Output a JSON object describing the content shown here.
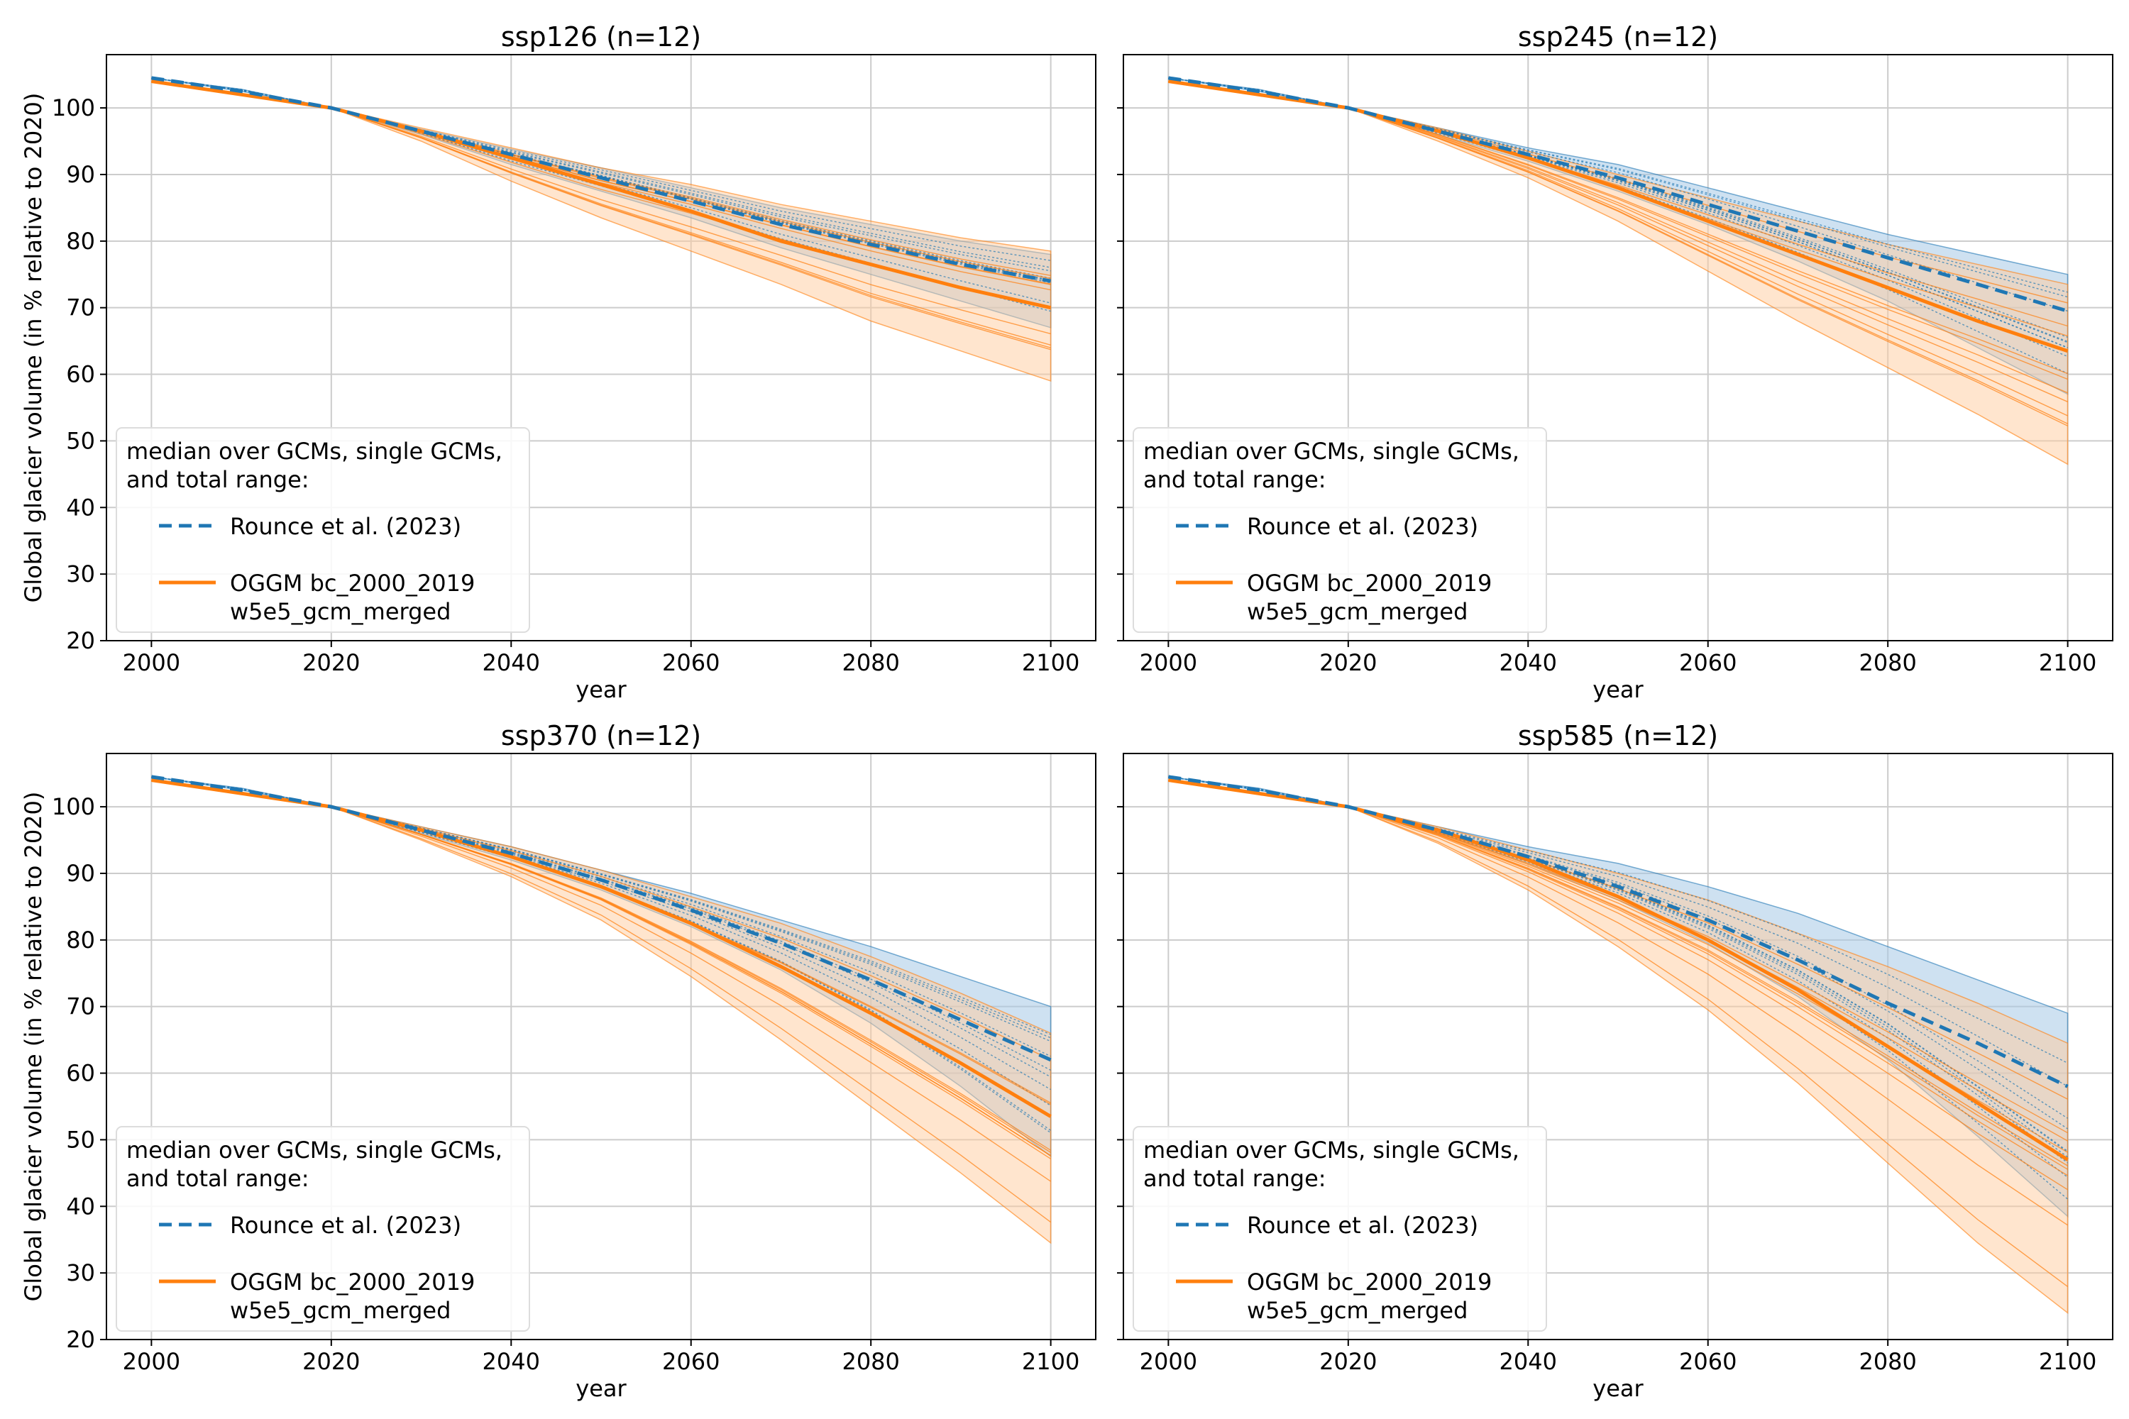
{
  "colors": {
    "rounce": "#1f77b4",
    "oggm": "#ff7f0e",
    "rounce_fill": "#a6c8e6",
    "oggm_fill": "#ffcb9e",
    "grid": "#cccccc",
    "text": "#000000"
  },
  "shared": {
    "xlabel": "year",
    "ylabel": "Global glacier volume (in % relative to 2020)",
    "xlim": [
      1995,
      2105
    ],
    "ylim": [
      20,
      108
    ],
    "xticks": [
      2000,
      2020,
      2040,
      2060,
      2080,
      2100
    ],
    "yticks": [
      20,
      30,
      40,
      50,
      60,
      70,
      80,
      90,
      100
    ],
    "grid": true,
    "legend_location": "lower-left",
    "legend_title": "median over GCMs, single GCMs,\n and total range:",
    "legend_entries": [
      {
        "label": "Rounce et al. (2023)",
        "style": "dashed",
        "color": "#1f77b4"
      },
      {
        "label": "OGGM bc_2000_2019\nw5e5_gcm_merged",
        "style": "solid",
        "color": "#ff7f0e"
      }
    ],
    "years": [
      2000,
      2010,
      2020,
      2030,
      2040,
      2050,
      2060,
      2070,
      2080,
      2090,
      2100
    ]
  },
  "chart_data": [
    {
      "type": "line",
      "title": "ssp126 (n=12)",
      "series": [
        {
          "name": "Rounce et al. (2023)",
          "style": "dashed",
          "x": [
            2000,
            2010,
            2020,
            2030,
            2040,
            2050,
            2060,
            2070,
            2080,
            2090,
            2100
          ],
          "median": [
            104.5,
            102.5,
            100,
            96.5,
            93,
            89.5,
            86,
            82.5,
            79.5,
            76.5,
            74
          ],
          "min": [
            104.5,
            102.5,
            100,
            96,
            91.5,
            87.5,
            83.5,
            79,
            75,
            71,
            67
          ],
          "max": [
            104.5,
            102.8,
            100,
            96.8,
            93.8,
            91,
            88,
            85,
            82.5,
            80,
            78
          ]
        },
        {
          "name": "OGGM bc_2000_2019\nw5e5_gcm_merged",
          "style": "solid",
          "x": [
            2000,
            2010,
            2020,
            2030,
            2040,
            2050,
            2060,
            2070,
            2080,
            2090,
            2100
          ],
          "median": [
            104,
            102,
            100,
            96.5,
            92.5,
            88.5,
            84.5,
            80,
            76.5,
            73,
            70
          ],
          "min": [
            104,
            102,
            100,
            95,
            89,
            83.5,
            78.5,
            73.5,
            68,
            63.5,
            59
          ],
          "max": [
            104,
            102.2,
            100,
            97,
            94,
            91,
            88.5,
            85.5,
            83,
            80.5,
            78.5
          ]
        }
      ]
    },
    {
      "type": "line",
      "title": "ssp245 (n=12)",
      "series": [
        {
          "name": "Rounce et al. (2023)",
          "style": "dashed",
          "x": [
            2000,
            2010,
            2020,
            2030,
            2040,
            2050,
            2060,
            2070,
            2080,
            2090,
            2100
          ],
          "median": [
            104.5,
            102.5,
            100,
            96.5,
            93,
            89.5,
            85.5,
            81.5,
            77.5,
            73.5,
            69.5
          ],
          "min": [
            104.5,
            102.5,
            100,
            96,
            92,
            87.5,
            82.5,
            77,
            71,
            64,
            57
          ],
          "max": [
            104.5,
            102.8,
            100,
            97,
            94,
            91.5,
            88,
            84.5,
            81,
            78,
            75
          ]
        },
        {
          "name": "OGGM bc_2000_2019\nw5e5_gcm_merged",
          "style": "solid",
          "x": [
            2000,
            2010,
            2020,
            2030,
            2040,
            2050,
            2060,
            2070,
            2080,
            2090,
            2100
          ],
          "median": [
            104,
            102,
            100,
            96.5,
            92.5,
            88,
            83,
            78,
            73,
            68,
            63.5
          ],
          "min": [
            104,
            102,
            100,
            95,
            89.5,
            83,
            75.5,
            68,
            61,
            54,
            46.5
          ],
          "max": [
            104,
            102.2,
            100,
            97,
            93.5,
            90,
            86.5,
            83,
            79.5,
            76.5,
            73.5
          ]
        }
      ]
    },
    {
      "type": "line",
      "title": "ssp370 (n=12)",
      "series": [
        {
          "name": "Rounce et al. (2023)",
          "style": "dashed",
          "x": [
            2000,
            2010,
            2020,
            2030,
            2040,
            2050,
            2060,
            2070,
            2080,
            2090,
            2100
          ],
          "median": [
            104.5,
            102.5,
            100,
            96.5,
            93,
            89,
            84.5,
            79.5,
            74,
            68,
            62
          ],
          "min": [
            104.5,
            102.5,
            100,
            96,
            92,
            87.5,
            82,
            75.5,
            67.5,
            58,
            47.5
          ],
          "max": [
            104.5,
            102.8,
            100,
            97,
            94,
            90.5,
            87,
            83,
            79,
            74.5,
            70
          ]
        },
        {
          "name": "OGGM bc_2000_2019\nw5e5_gcm_merged",
          "style": "solid",
          "x": [
            2000,
            2010,
            2020,
            2030,
            2040,
            2050,
            2060,
            2070,
            2080,
            2090,
            2100
          ],
          "median": [
            104,
            102,
            100,
            96.5,
            92.5,
            88,
            82.5,
            76,
            69,
            61.5,
            53.5
          ],
          "min": [
            104,
            102,
            100,
            95,
            89.5,
            83,
            74.5,
            65,
            55,
            45,
            34.5
          ],
          "max": [
            104,
            102.2,
            100,
            97,
            94,
            90.5,
            86.5,
            82.5,
            77.5,
            72,
            66
          ]
        }
      ]
    },
    {
      "type": "line",
      "title": "ssp585 (n=12)",
      "series": [
        {
          "name": "Rounce et al. (2023)",
          "style": "dashed",
          "x": [
            2000,
            2010,
            2020,
            2030,
            2040,
            2050,
            2060,
            2070,
            2080,
            2090,
            2100
          ],
          "median": [
            104.5,
            102.5,
            100,
            96.5,
            92.5,
            88,
            83,
            77,
            70.5,
            64.5,
            58
          ],
          "min": [
            104.5,
            102.5,
            100,
            96,
            91.5,
            86,
            79.5,
            71.5,
            62,
            50.5,
            38.5
          ],
          "max": [
            104.5,
            102.8,
            100,
            97,
            94,
            91.5,
            88,
            84,
            79,
            74,
            69
          ]
        },
        {
          "name": "OGGM bc_2000_2019\nw5e5_gcm_merged",
          "style": "solid",
          "x": [
            2000,
            2010,
            2020,
            2030,
            2040,
            2050,
            2060,
            2070,
            2080,
            2090,
            2100
          ],
          "median": [
            104,
            102,
            100,
            96.5,
            92,
            86.5,
            80,
            72.5,
            64,
            55.5,
            47
          ],
          "min": [
            104,
            102,
            100,
            94.5,
            87.5,
            79,
            69.5,
            58.5,
            46.5,
            34.5,
            24
          ],
          "max": [
            104,
            102.2,
            100,
            97,
            93.5,
            90,
            86,
            81,
            76,
            70.5,
            64.5
          ]
        }
      ]
    }
  ]
}
